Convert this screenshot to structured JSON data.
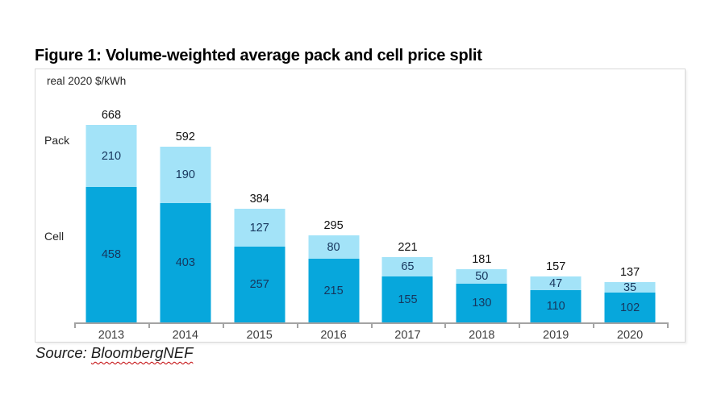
{
  "figure": {
    "title": "Figure 1: Volume-weighted average pack and cell price split",
    "unit_label": "real 2020 $/kWh",
    "pack_label": "Pack",
    "cell_label": "Cell",
    "source_prefix": "Source: ",
    "source_name": "BloombergNEF"
  },
  "colors": {
    "pack_fill": "#a3e3f8",
    "cell_fill": "#07a7dc",
    "value_text": "#17365d",
    "axis": "#a3a3a3"
  },
  "chart_data": {
    "type": "bar",
    "stacked": true,
    "title": "Figure 1: Volume-weighted average pack and cell price split",
    "ylabel": "real 2020 $/kWh",
    "xlabel": "",
    "categories": [
      "2013",
      "2014",
      "2015",
      "2016",
      "2017",
      "2018",
      "2019",
      "2020"
    ],
    "series": [
      {
        "name": "Cell",
        "color": "#07a7dc",
        "values": [
          458,
          403,
          257,
          215,
          155,
          130,
          110,
          102
        ]
      },
      {
        "name": "Pack",
        "color": "#a3e3f8",
        "values": [
          210,
          190,
          127,
          80,
          65,
          50,
          47,
          35
        ]
      }
    ],
    "totals": [
      668,
      592,
      384,
      295,
      221,
      181,
      157,
      137
    ],
    "ylim": [
      0,
      700
    ],
    "grid": false,
    "value_labels": true,
    "legend_position": "left-side-labels"
  }
}
